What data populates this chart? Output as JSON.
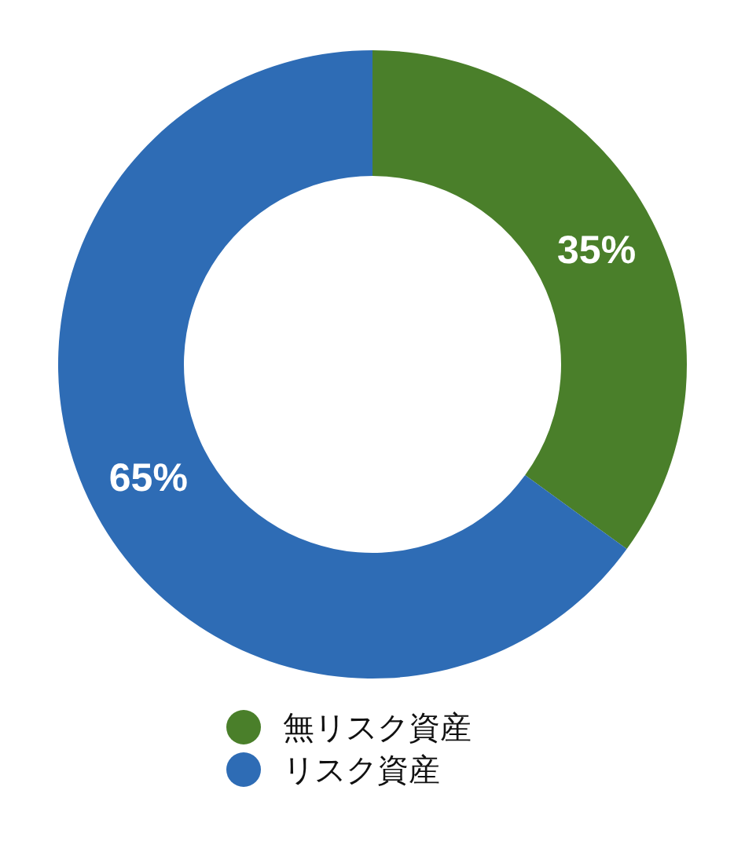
{
  "chart_data": {
    "type": "donut",
    "categories": [
      "無リスク資産",
      "リスク資産"
    ],
    "values": [
      35,
      65
    ],
    "colors": [
      "#4a7f2a",
      "#2e6cb5"
    ],
    "value_labels": [
      "35%",
      "65%"
    ],
    "legend": "bottom"
  }
}
